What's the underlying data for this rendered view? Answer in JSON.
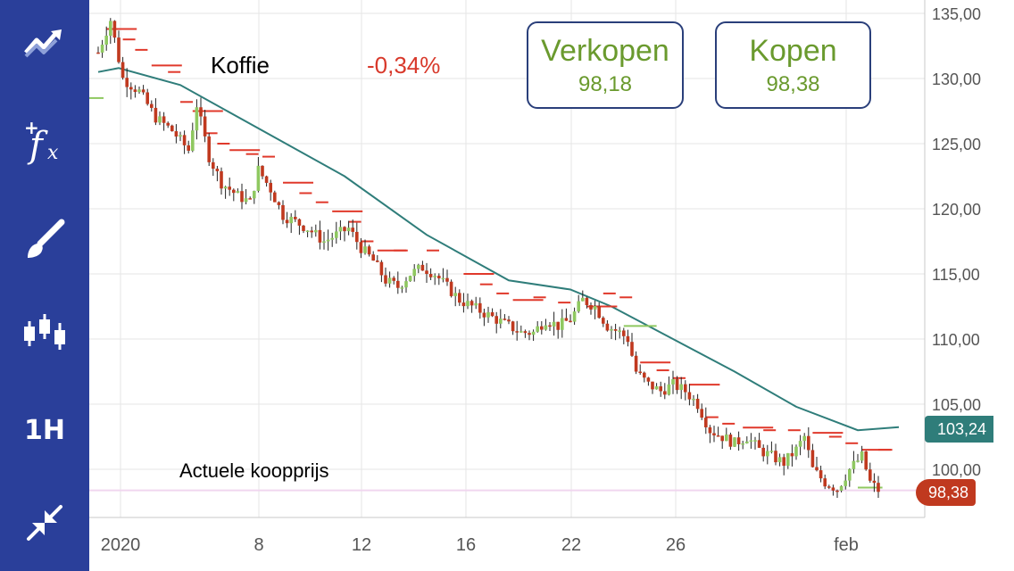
{
  "sidebar": {
    "items": [
      {
        "name": "chart-type",
        "icon": "trend-chart-icon"
      },
      {
        "name": "indicators",
        "icon": "function-fx-icon"
      },
      {
        "name": "drawing",
        "icon": "paintbrush-icon"
      },
      {
        "name": "candles",
        "icon": "candlestick-icon"
      },
      {
        "name": "timeframe",
        "label": "1H"
      },
      {
        "name": "fullscreen",
        "icon": "collapse-arrows-icon"
      }
    ],
    "bg_color": "#2a3f9a"
  },
  "instrument": {
    "name": "Koffie",
    "change": "-0,34%"
  },
  "sell": {
    "label": "Verkopen",
    "price": "98,18"
  },
  "buy": {
    "label": "Kopen",
    "price": "98,38"
  },
  "caption": "Actuele koopprijs",
  "tags": {
    "moving_average": "103,24",
    "current_price": "98,38"
  },
  "colors": {
    "up": "#8fc860",
    "down": "#c0391f",
    "ma_line": "#2f7d7a",
    "accent_green": "#6a9a2e",
    "sar": "#e0392b"
  },
  "chart_data": {
    "type": "candlestick",
    "x_tick_labels": [
      "2020",
      "8",
      "12",
      "16",
      "22",
      "26",
      "feb"
    ],
    "y_tick_labels": [
      "135,00",
      "130,00",
      "125,00",
      "120,00",
      "115,00",
      "110,00",
      "105,00",
      "100,00"
    ],
    "ylim": [
      97,
      135
    ],
    "grid": true,
    "close_path": [
      [
        0,
        132.0
      ],
      [
        3,
        134.5
      ],
      [
        6,
        130.0
      ],
      [
        10,
        129.0
      ],
      [
        14,
        127.0
      ],
      [
        18,
        126.0
      ],
      [
        22,
        124.5
      ],
      [
        24,
        128.0
      ],
      [
        27,
        124.0
      ],
      [
        30,
        122.0
      ],
      [
        34,
        121.0
      ],
      [
        37,
        120.5
      ],
      [
        39,
        123.0
      ],
      [
        42,
        121.5
      ],
      [
        45,
        119.5
      ],
      [
        48,
        119.0
      ],
      [
        51,
        118.5
      ],
      [
        55,
        117.5
      ],
      [
        58,
        118.0
      ],
      [
        61,
        118.5
      ],
      [
        64,
        117.0
      ],
      [
        67,
        116.0
      ],
      [
        70,
        114.5
      ],
      [
        73,
        114.0
      ],
      [
        76,
        115.0
      ],
      [
        79,
        115.5
      ],
      [
        82,
        115.0
      ],
      [
        85,
        114.0
      ],
      [
        88,
        113.0
      ],
      [
        91,
        112.5
      ],
      [
        94,
        112.0
      ],
      [
        97,
        111.5
      ],
      [
        100,
        111.0
      ],
      [
        103,
        110.5
      ],
      [
        106,
        110.5
      ],
      [
        109,
        111.5
      ],
      [
        112,
        111.0
      ],
      [
        115,
        111.5
      ],
      [
        118,
        113.0
      ],
      [
        121,
        112.5
      ],
      [
        124,
        111.0
      ],
      [
        127,
        110.5
      ],
      [
        129,
        110.0
      ],
      [
        131,
        107.5
      ],
      [
        134,
        106.5
      ],
      [
        137,
        106.0
      ],
      [
        140,
        106.5
      ],
      [
        143,
        106.0
      ],
      [
        146,
        105.0
      ],
      [
        149,
        103.0
      ],
      [
        152,
        102.5
      ],
      [
        155,
        102.0
      ],
      [
        158,
        102.5
      ],
      [
        161,
        101.5
      ],
      [
        164,
        101.0
      ],
      [
        167,
        100.5
      ],
      [
        170,
        101.5
      ],
      [
        172,
        102.5
      ],
      [
        174,
        100.0
      ],
      [
        177,
        99.0
      ],
      [
        180,
        98.5
      ],
      [
        183,
        100.0
      ],
      [
        186,
        101.0
      ],
      [
        188,
        99.0
      ],
      [
        190,
        98.4
      ]
    ],
    "moving_average": [
      [
        0,
        130.5
      ],
      [
        5,
        130.8
      ],
      [
        20,
        129.5
      ],
      [
        40,
        126.0
      ],
      [
        60,
        122.5
      ],
      [
        80,
        118.0
      ],
      [
        100,
        114.5
      ],
      [
        115,
        113.8
      ],
      [
        125,
        112.5
      ],
      [
        140,
        110.0
      ],
      [
        155,
        107.5
      ],
      [
        170,
        104.8
      ],
      [
        185,
        103.0
      ],
      [
        195,
        103.24
      ]
    ],
    "sar_levels": [
      [
        2,
        133.8
      ],
      [
        6,
        133.0
      ],
      [
        9,
        132.2
      ],
      [
        13,
        131.0
      ],
      [
        17,
        130.5
      ],
      [
        20,
        128.2
      ],
      [
        23,
        127.5
      ],
      [
        26,
        125.8
      ],
      [
        29,
        125.0
      ],
      [
        32,
        124.5
      ],
      [
        36,
        124.2
      ],
      [
        40,
        124.0
      ],
      [
        45,
        122.0
      ],
      [
        49,
        121.2
      ],
      [
        53,
        120.5
      ],
      [
        57,
        119.8
      ],
      [
        61,
        119.0
      ],
      [
        64,
        117.5
      ],
      [
        68,
        116.8
      ],
      [
        72,
        116.8
      ],
      [
        80,
        116.8
      ],
      [
        89,
        115.0
      ],
      [
        93,
        114.2
      ],
      [
        97,
        113.5
      ],
      [
        101,
        113.0
      ],
      [
        106,
        113.2
      ],
      [
        112,
        112.8
      ],
      [
        119,
        112.5
      ],
      [
        123,
        113.5
      ],
      [
        127,
        113.2
      ],
      [
        132,
        108.2
      ],
      [
        136,
        107.6
      ],
      [
        140,
        107.0
      ],
      [
        144,
        106.5
      ],
      [
        148,
        104.0
      ],
      [
        152,
        103.5
      ],
      [
        157,
        103.2
      ],
      [
        162,
        103.0
      ],
      [
        168,
        103.0
      ],
      [
        174,
        102.8
      ],
      [
        178,
        102.5
      ],
      [
        182,
        102.0
      ],
      [
        186,
        101.5
      ],
      [
        190,
        101.5
      ]
    ],
    "current_price": 98.38,
    "ma_last": 103.24
  }
}
